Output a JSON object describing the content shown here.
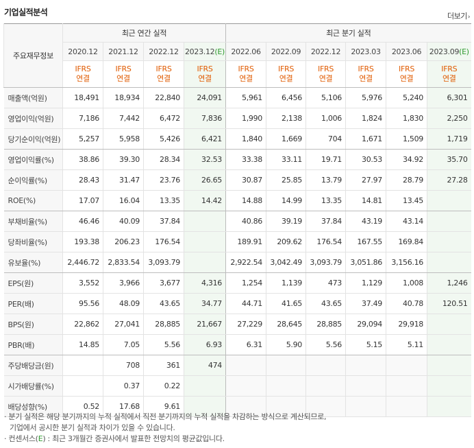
{
  "section_title": "기업실적분석",
  "more_label": "더보기",
  "more_arrow": "›",
  "corner_label": "주요재무정보",
  "groups": {
    "annual": "최근 연간 실적",
    "quarter": "최근 분기 실적"
  },
  "periods": [
    "2020.12",
    "2021.12",
    "2022.12",
    "2023.12",
    "2022.06",
    "2022.09",
    "2022.12",
    "2023.03",
    "2023.06",
    "2023.09"
  ],
  "estimate_mark": "(E)",
  "ifrs": [
    "IFRS",
    "연결"
  ],
  "rows": [
    {
      "label": "매출액(억원)",
      "values": [
        "18,491",
        "18,934",
        "22,840",
        "24,091",
        "5,961",
        "6,456",
        "5,106",
        "5,976",
        "5,240",
        "6,301"
      ]
    },
    {
      "label": "영업이익(억원)",
      "values": [
        "7,186",
        "7,442",
        "6,472",
        "7,836",
        "1,990",
        "2,138",
        "1,006",
        "1,824",
        "1,830",
        "2,250"
      ]
    },
    {
      "label": "당기순이익(억원)",
      "values": [
        "5,257",
        "5,958",
        "5,426",
        "6,421",
        "1,840",
        "1,669",
        "704",
        "1,671",
        "1,509",
        "1,719"
      ]
    },
    {
      "label": "영업이익률(%)",
      "values": [
        "38.86",
        "39.30",
        "28.34",
        "32.53",
        "33.38",
        "33.11",
        "19.71",
        "30.53",
        "34.92",
        "35.70"
      ]
    },
    {
      "label": "순이익률(%)",
      "values": [
        "28.43",
        "31.47",
        "23.76",
        "26.65",
        "30.87",
        "25.85",
        "13.79",
        "27.97",
        "28.79",
        "27.28"
      ]
    },
    {
      "label": "ROE(%)",
      "values": [
        "17.07",
        "16.04",
        "13.35",
        "14.42",
        "14.88",
        "14.99",
        "13.35",
        "14.81",
        "13.45",
        ""
      ]
    },
    {
      "label": "부채비율(%)",
      "values": [
        "46.46",
        "40.09",
        "37.84",
        "",
        "40.86",
        "39.19",
        "37.84",
        "43.19",
        "43.14",
        ""
      ]
    },
    {
      "label": "당좌비율(%)",
      "values": [
        "193.38",
        "206.23",
        "176.54",
        "",
        "189.91",
        "209.62",
        "176.54",
        "167.55",
        "169.84",
        ""
      ]
    },
    {
      "label": "유보율(%)",
      "values": [
        "2,446.72",
        "2,833.54",
        "3,093.79",
        "",
        "2,922.54",
        "3,042.49",
        "3,093.79",
        "3,051.86",
        "3,156.16",
        ""
      ]
    },
    {
      "label": "EPS(원)",
      "values": [
        "3,552",
        "3,966",
        "3,677",
        "4,316",
        "1,254",
        "1,139",
        "473",
        "1,129",
        "1,008",
        "1,246"
      ]
    },
    {
      "label": "PER(배)",
      "values": [
        "95.56",
        "48.09",
        "43.65",
        "34.77",
        "44.71",
        "41.65",
        "43.65",
        "37.49",
        "40.78",
        "120.51"
      ]
    },
    {
      "label": "BPS(원)",
      "values": [
        "22,862",
        "27,041",
        "28,885",
        "21,667",
        "27,229",
        "28,645",
        "28,885",
        "29,094",
        "29,918",
        ""
      ]
    },
    {
      "label": "PBR(배)",
      "values": [
        "14.85",
        "7.05",
        "5.56",
        "6.93",
        "6.31",
        "5.90",
        "5.56",
        "5.15",
        "5.11",
        ""
      ]
    },
    {
      "label": "주당배당금(원)",
      "values": [
        "",
        "708",
        "361",
        "474",
        "",
        "",
        "",
        "",
        "",
        ""
      ]
    },
    {
      "label": "시가배당률(%)",
      "values": [
        "",
        "0.37",
        "0.22",
        "",
        "",
        "",
        "",
        "",
        "",
        ""
      ]
    },
    {
      "label": "배당성향(%)",
      "values": [
        "0.52",
        "17.68",
        "9.61",
        "",
        "",
        "",
        "",
        "",
        "",
        ""
      ]
    }
  ],
  "notes": {
    "line1": "분기 실적은 해당 분기까지의 누적 실적에서 직전 분기까지의 누적 실적을 차감하는 방식으로 계산되므로,",
    "line2": "기업에서 공시한 분기 실적과 차이가 있을 수 있습니다.",
    "line3_pre": "컨센서스(",
    "line3_e": "E",
    "line3_post": ") : 최근 3개월간 증권사에서 발표한 전망치의 평균값입니다."
  }
}
